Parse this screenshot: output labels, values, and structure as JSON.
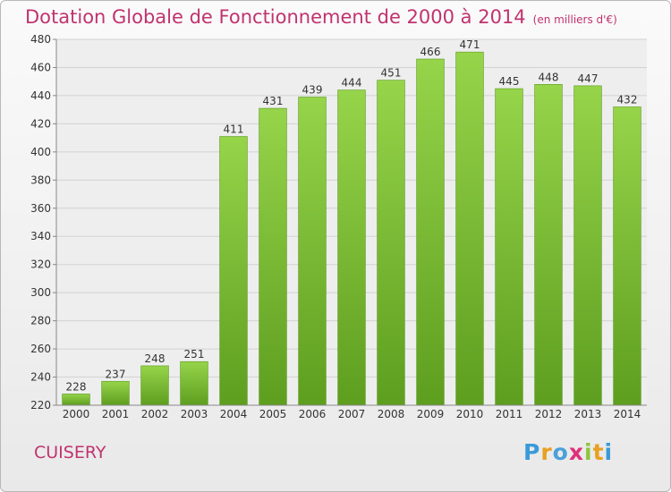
{
  "chart_data": {
    "type": "bar",
    "title": "Dotation Globale de Fonctionnement de 2000 à 2014",
    "subtitle": "(en milliers d'€)",
    "categories": [
      "2000",
      "2001",
      "2002",
      "2003",
      "2004",
      "2005",
      "2006",
      "2007",
      "2008",
      "2009",
      "2010",
      "2011",
      "2012",
      "2013",
      "2014"
    ],
    "values": [
      228,
      237,
      248,
      251,
      411,
      431,
      439,
      444,
      451,
      466,
      471,
      445,
      448,
      447,
      432
    ],
    "ylim": [
      220,
      480
    ],
    "yticks": [
      220,
      240,
      260,
      280,
      300,
      320,
      340,
      360,
      380,
      400,
      420,
      440,
      460,
      480
    ],
    "grid": true,
    "bar_color": "#7cc134",
    "bar_color_dark": "#5a9a1c"
  },
  "commune": "CUISERY",
  "logo": [
    "P",
    "r",
    "o",
    "x",
    "i",
    "t",
    "i"
  ]
}
